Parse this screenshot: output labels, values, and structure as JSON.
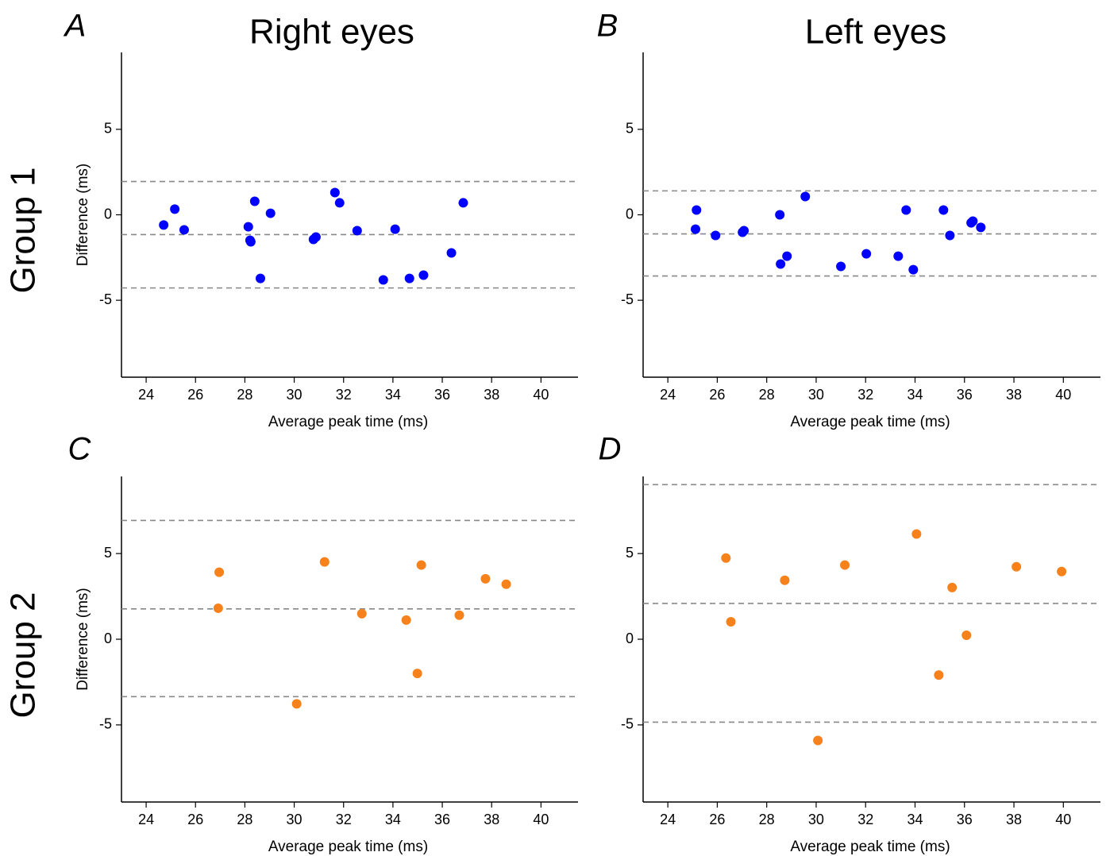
{
  "column_titles": [
    "Right eyes",
    "Left eyes"
  ],
  "row_titles": [
    "Group 1",
    "Group 2"
  ],
  "chart_data": [
    {
      "type": "scatter",
      "panel": "A",
      "xlabel": "Average peak time (ms)",
      "ylabel": "Difference (ms)",
      "xlim": [
        23,
        41.5
      ],
      "ylim": [
        -9.5,
        9.5
      ],
      "xticks": [
        24,
        26,
        28,
        30,
        32,
        34,
        36,
        38,
        40
      ],
      "yticks": [
        -5,
        0,
        5
      ],
      "color": "#0000ff",
      "reference_lines": [
        1.95,
        -1.16,
        -4.28
      ],
      "x": [
        24.71,
        25.16,
        25.54,
        28.14,
        28.21,
        28.24,
        28.4,
        28.63,
        29.04,
        30.78,
        30.88,
        31.65,
        31.84,
        32.55,
        33.61,
        34.09,
        34.67,
        35.24,
        36.37,
        36.85
      ],
      "values": [
        -0.6,
        0.33,
        -0.88,
        -0.7,
        -1.49,
        -1.58,
        0.79,
        -3.72,
        0.09,
        -1.44,
        -1.3,
        1.3,
        0.7,
        -0.93,
        -3.81,
        -0.84,
        -3.72,
        -3.53,
        -2.23,
        0.7
      ]
    },
    {
      "type": "scatter",
      "panel": "B",
      "xlabel": "Average peak time (ms)",
      "xlim": [
        23,
        41.5
      ],
      "ylim": [
        -9.5,
        9.5
      ],
      "xticks": [
        24,
        26,
        28,
        30,
        32,
        34,
        36,
        38,
        40
      ],
      "yticks": [
        -5,
        0,
        5
      ],
      "color": "#0000ff",
      "reference_lines": [
        1.4,
        -1.12,
        -3.58
      ],
      "x": [
        25.16,
        25.12,
        25.93,
        27.02,
        27.08,
        28.53,
        28.56,
        28.82,
        29.56,
        31.0,
        32.03,
        33.32,
        33.64,
        33.93,
        35.15,
        35.41,
        36.27,
        36.34,
        36.66
      ],
      "values": [
        0.28,
        -0.84,
        -1.21,
        -1.02,
        -0.93,
        0,
        -2.88,
        -2.42,
        1.07,
        -3.02,
        -2.28,
        -2.42,
        0.28,
        -3.21,
        0.28,
        -1.21,
        -0.47,
        -0.37,
        -0.74
      ]
    },
    {
      "type": "scatter",
      "panel": "C",
      "xlabel": "Average peak time (ms)",
      "ylabel": "Difference (ms)",
      "xlim": [
        23,
        41.5
      ],
      "ylim": [
        -9.5,
        9.5
      ],
      "xticks": [
        24,
        26,
        28,
        30,
        32,
        34,
        36,
        38,
        40
      ],
      "yticks": [
        -5,
        0,
        5
      ],
      "color": "#f7821b",
      "reference_lines": [
        6.93,
        1.77,
        -3.35
      ],
      "x": [
        26.96,
        26.92,
        30.1,
        31.23,
        32.74,
        34.54,
        34.99,
        35.15,
        36.69,
        37.75,
        38.59
      ],
      "values": [
        3.91,
        1.81,
        -3.77,
        4.51,
        1.49,
        1.12,
        -2.0,
        4.33,
        1.4,
        3.53,
        3.21
      ]
    },
    {
      "type": "scatter",
      "panel": "D",
      "xlabel": "Average peak time (ms)",
      "xlim": [
        23,
        41.5
      ],
      "ylim": [
        -9.5,
        9.5
      ],
      "xticks": [
        24,
        26,
        28,
        30,
        32,
        34,
        36,
        38,
        40
      ],
      "yticks": [
        -5,
        0,
        5
      ],
      "color": "#f7821b",
      "reference_lines": [
        9.02,
        2.09,
        -4.84
      ],
      "x": [
        26.35,
        26.55,
        28.73,
        30.07,
        31.16,
        34.06,
        34.96,
        35.5,
        36.08,
        38.1,
        39.93
      ],
      "values": [
        4.74,
        1.02,
        3.44,
        -5.91,
        4.33,
        6.14,
        -2.09,
        3.02,
        0.23,
        4.23,
        3.95
      ]
    }
  ]
}
